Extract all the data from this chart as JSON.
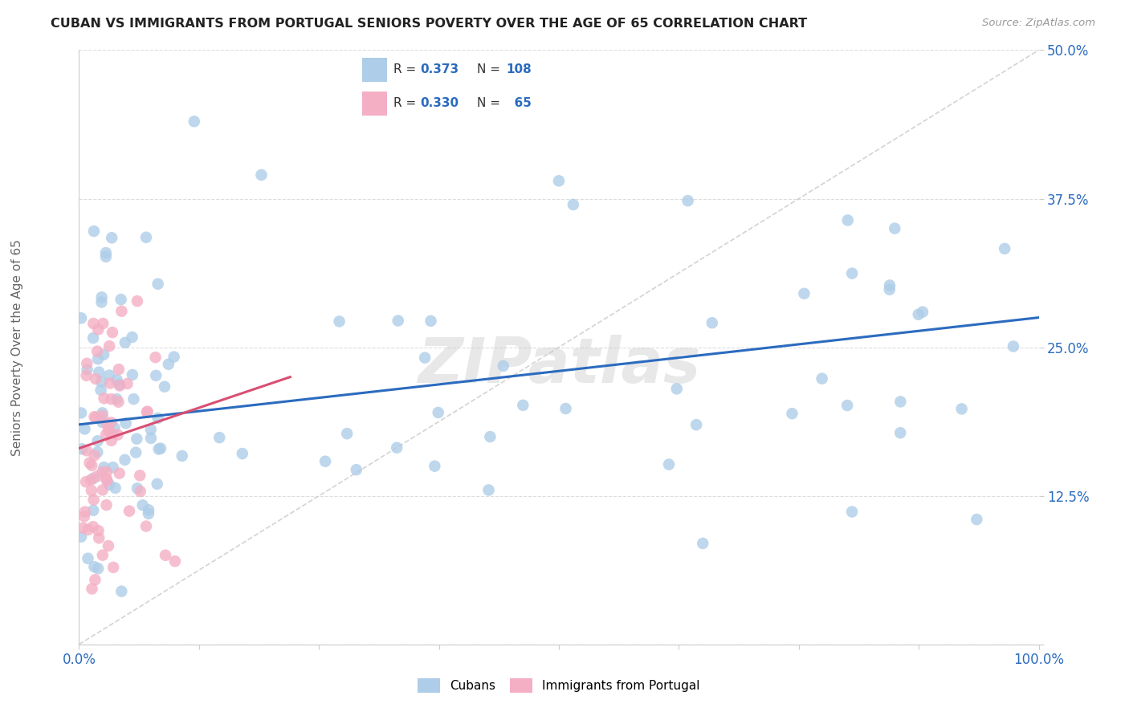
{
  "title": "CUBAN VS IMMIGRANTS FROM PORTUGAL SENIORS POVERTY OVER THE AGE OF 65 CORRELATION CHART",
  "source": "Source: ZipAtlas.com",
  "ylabel": "Seniors Poverty Over the Age of 65",
  "xlim": [
    0.0,
    1.0
  ],
  "ylim": [
    0.0,
    0.5
  ],
  "yticks": [
    0.0,
    0.125,
    0.25,
    0.375,
    0.5
  ],
  "ytick_labels": [
    "",
    "12.5%",
    "25.0%",
    "37.5%",
    "50.0%"
  ],
  "xticks": [
    0.0,
    0.125,
    0.25,
    0.375,
    0.5,
    0.625,
    0.75,
    0.875,
    1.0
  ],
  "xtick_labels": [
    "0.0%",
    "",
    "",
    "",
    "",
    "",
    "",
    "",
    "100.0%"
  ],
  "cuban_R": 0.373,
  "cuban_N": 108,
  "portugal_R": 0.33,
  "portugal_N": 65,
  "cuban_color": "#aecde8",
  "portugal_color": "#f4afc4",
  "cuban_line_color": "#2b6bbf",
  "portugal_line_color": "#d94f72",
  "diagonal_color": "#cccccc",
  "watermark": "ZIPatlas",
  "background_color": "#ffffff",
  "legend_color": "#2b6bbf",
  "cuban_line_x0": 0.0,
  "cuban_line_y0": 0.185,
  "cuban_line_x1": 1.0,
  "cuban_line_y1": 0.275,
  "portugal_line_x0": 0.0,
  "portugal_line_y0": 0.165,
  "portugal_line_x1": 0.22,
  "portugal_line_y1": 0.225
}
